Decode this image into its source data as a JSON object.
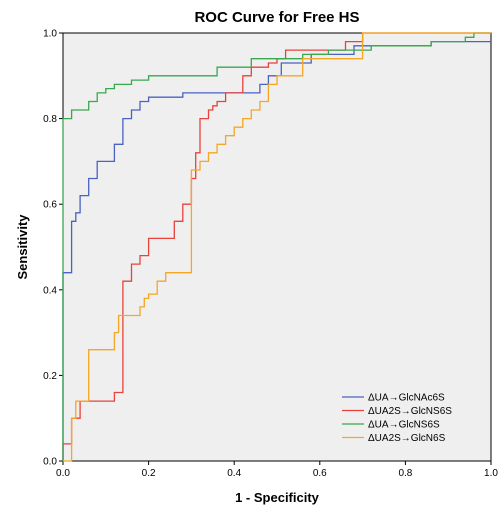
{
  "chart_data": {
    "type": "line",
    "title": "ROC Curve for Free HS",
    "xlabel": "1 - Specificity",
    "ylabel": "Sensitivity",
    "xlim": [
      0,
      1
    ],
    "ylim": [
      0,
      1
    ],
    "xticks": [
      "0.0",
      "0.2",
      "0.4",
      "0.6",
      "0.8",
      "1.0"
    ],
    "yticks": [
      "0.0",
      "0.2",
      "0.4",
      "0.6",
      "0.8",
      "1.0"
    ],
    "grid": false,
    "background": "#efefef",
    "legend_position": "bottom-right",
    "series": [
      {
        "name": "ΔUA→GlcNAc6S",
        "color": "#4a62c4",
        "x": [
          0,
          0,
          0.02,
          0.02,
          0.03,
          0.03,
          0.04,
          0.04,
          0.06,
          0.06,
          0.08,
          0.08,
          0.12,
          0.12,
          0.14,
          0.14,
          0.16,
          0.16,
          0.18,
          0.18,
          0.2,
          0.2,
          0.28,
          0.28,
          0.46,
          0.46,
          0.48,
          0.48,
          0.51,
          0.51,
          0.58,
          0.58,
          0.68,
          0.68,
          0.86,
          0.86,
          0.96,
          0.96,
          1
        ],
        "y": [
          0,
          0.44,
          0.44,
          0.56,
          0.56,
          0.58,
          0.58,
          0.62,
          0.62,
          0.66,
          0.66,
          0.7,
          0.7,
          0.74,
          0.74,
          0.8,
          0.8,
          0.82,
          0.82,
          0.84,
          0.84,
          0.85,
          0.85,
          0.86,
          0.86,
          0.88,
          0.88,
          0.9,
          0.9,
          0.93,
          0.93,
          0.95,
          0.95,
          0.97,
          0.97,
          0.98,
          0.98,
          0.98,
          0.98
        ]
      },
      {
        "name": "ΔUA2S→GlcNS6S",
        "color": "#e8423a",
        "x": [
          0,
          0,
          0.02,
          0.02,
          0.04,
          0.04,
          0.12,
          0.12,
          0.14,
          0.14,
          0.16,
          0.16,
          0.18,
          0.18,
          0.2,
          0.2,
          0.26,
          0.26,
          0.28,
          0.28,
          0.3,
          0.3,
          0.31,
          0.31,
          0.32,
          0.32,
          0.34,
          0.34,
          0.35,
          0.35,
          0.36,
          0.36,
          0.38,
          0.38,
          0.42,
          0.42,
          0.44,
          0.44,
          0.48,
          0.48,
          0.5,
          0.5,
          0.52,
          0.52,
          0.66,
          0.66,
          0.7,
          0.7,
          1
        ],
        "y": [
          0,
          0.04,
          0.04,
          0.1,
          0.1,
          0.14,
          0.14,
          0.16,
          0.16,
          0.42,
          0.42,
          0.46,
          0.46,
          0.48,
          0.48,
          0.52,
          0.52,
          0.56,
          0.56,
          0.6,
          0.6,
          0.66,
          0.66,
          0.72,
          0.72,
          0.8,
          0.8,
          0.82,
          0.82,
          0.83,
          0.83,
          0.84,
          0.84,
          0.86,
          0.86,
          0.9,
          0.9,
          0.92,
          0.92,
          0.93,
          0.93,
          0.94,
          0.94,
          0.96,
          0.96,
          0.98,
          0.98,
          1,
          1
        ]
      },
      {
        "name": "ΔUA→GlcNS6S",
        "color": "#3aa84e",
        "x": [
          0,
          0,
          0.02,
          0.02,
          0.06,
          0.06,
          0.08,
          0.08,
          0.1,
          0.1,
          0.12,
          0.12,
          0.16,
          0.16,
          0.2,
          0.2,
          0.36,
          0.36,
          0.44,
          0.44,
          0.56,
          0.56,
          0.62,
          0.62,
          0.72,
          0.72,
          0.86,
          0.86,
          0.94,
          0.94,
          0.96,
          0.96,
          1
        ],
        "y": [
          0,
          0.8,
          0.8,
          0.82,
          0.82,
          0.84,
          0.84,
          0.86,
          0.86,
          0.87,
          0.87,
          0.88,
          0.88,
          0.89,
          0.89,
          0.9,
          0.9,
          0.92,
          0.92,
          0.94,
          0.94,
          0.95,
          0.95,
          0.96,
          0.96,
          0.97,
          0.97,
          0.98,
          0.98,
          0.99,
          0.99,
          1,
          1
        ]
      },
      {
        "name": "ΔUA2S→GlcN6S",
        "color": "#f5a623",
        "x": [
          0,
          0.02,
          0.02,
          0.03,
          0.03,
          0.06,
          0.06,
          0.12,
          0.12,
          0.13,
          0.13,
          0.18,
          0.18,
          0.19,
          0.19,
          0.2,
          0.2,
          0.22,
          0.22,
          0.24,
          0.24,
          0.26,
          0.26,
          0.3,
          0.3,
          0.32,
          0.32,
          0.34,
          0.34,
          0.36,
          0.36,
          0.38,
          0.38,
          0.4,
          0.4,
          0.42,
          0.42,
          0.44,
          0.44,
          0.46,
          0.46,
          0.48,
          0.48,
          0.5,
          0.5,
          0.56,
          0.56,
          0.7,
          0.7,
          0.72,
          0.72,
          1
        ],
        "y": [
          0,
          0,
          0.1,
          0.1,
          0.14,
          0.14,
          0.26,
          0.26,
          0.3,
          0.3,
          0.34,
          0.34,
          0.36,
          0.36,
          0.38,
          0.38,
          0.39,
          0.39,
          0.42,
          0.42,
          0.44,
          0.44,
          0.44,
          0.44,
          0.68,
          0.68,
          0.7,
          0.7,
          0.72,
          0.72,
          0.74,
          0.74,
          0.76,
          0.76,
          0.78,
          0.78,
          0.8,
          0.8,
          0.82,
          0.82,
          0.84,
          0.84,
          0.88,
          0.88,
          0.9,
          0.9,
          0.94,
          0.94,
          1,
          1,
          1,
          1
        ]
      }
    ]
  }
}
